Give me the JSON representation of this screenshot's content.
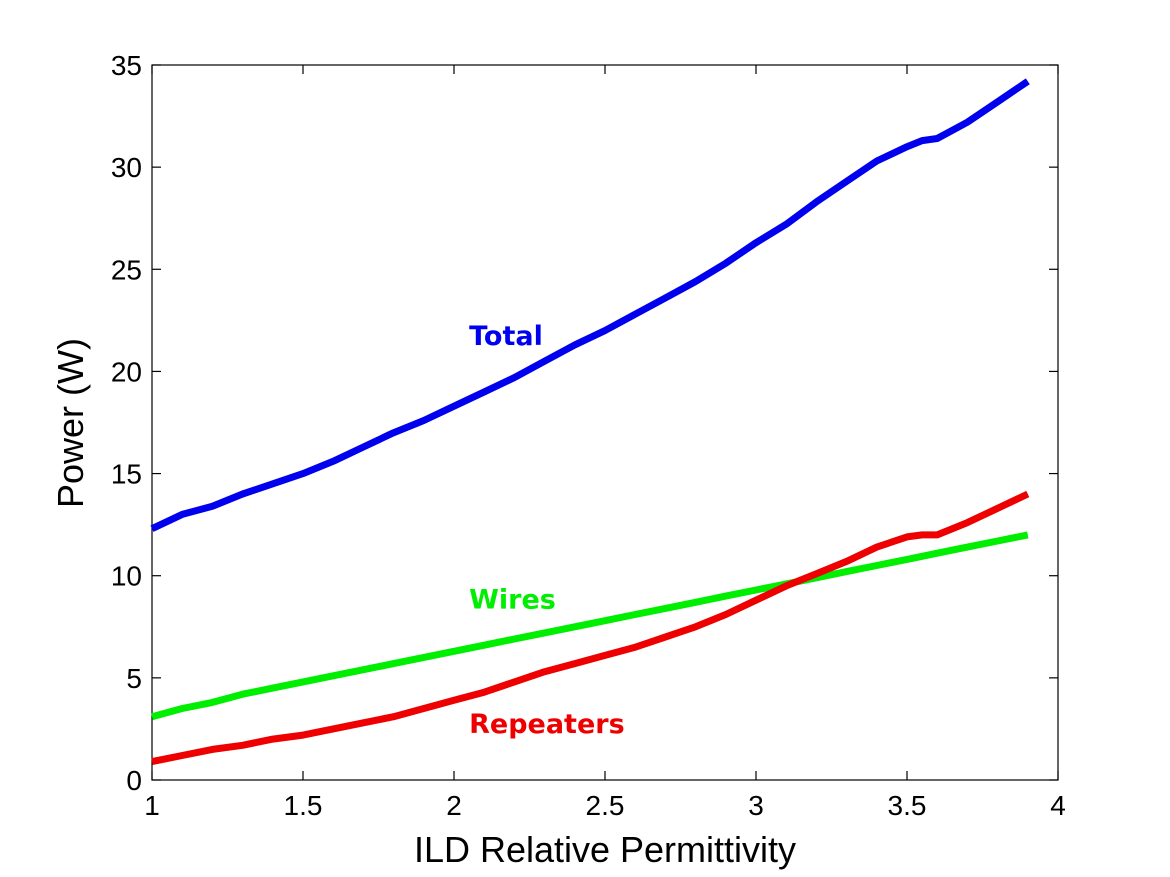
{
  "chart_data": {
    "type": "line",
    "title": "",
    "xlabel": "ILD Relative Permittivity",
    "ylabel": "Power (W)",
    "xlim": [
      1,
      4
    ],
    "ylim": [
      0,
      35
    ],
    "xticks": [
      1,
      1.5,
      2,
      2.5,
      3,
      3.5,
      4
    ],
    "xtick_labels": [
      "1",
      "1.5",
      "2",
      "2.5",
      "3",
      "3.5",
      "4"
    ],
    "yticks": [
      0,
      5,
      10,
      15,
      20,
      25,
      30,
      35
    ],
    "ytick_labels": [
      "0",
      "5",
      "10",
      "15",
      "20",
      "25",
      "30",
      "35"
    ],
    "grid": false,
    "legend": "inline labels",
    "series": [
      {
        "name": "Total",
        "color": "#0000ee",
        "label_at": [
          2.05,
          21.3
        ],
        "x": [
          1.0,
          1.1,
          1.2,
          1.3,
          1.4,
          1.5,
          1.6,
          1.7,
          1.8,
          1.9,
          2.0,
          2.1,
          2.2,
          2.3,
          2.4,
          2.5,
          2.6,
          2.7,
          2.8,
          2.9,
          3.0,
          3.1,
          3.2,
          3.3,
          3.4,
          3.5,
          3.55,
          3.6,
          3.7,
          3.8,
          3.9
        ],
        "values": [
          12.3,
          13.0,
          13.4,
          14.0,
          14.5,
          15.0,
          15.6,
          16.3,
          17.0,
          17.6,
          18.3,
          19.0,
          19.7,
          20.5,
          21.3,
          22.0,
          22.8,
          23.6,
          24.4,
          25.3,
          26.3,
          27.2,
          28.3,
          29.3,
          30.3,
          31.0,
          31.3,
          31.4,
          32.2,
          33.2,
          34.2
        ]
      },
      {
        "name": "Wires",
        "color": "#00ee00",
        "label_at": [
          2.05,
          8.4
        ],
        "x": [
          1.0,
          1.1,
          1.2,
          1.3,
          1.4,
          1.5,
          1.6,
          1.7,
          1.8,
          1.9,
          2.0,
          2.1,
          2.2,
          2.3,
          2.4,
          2.5,
          2.6,
          2.7,
          2.8,
          2.9,
          3.0,
          3.1,
          3.2,
          3.3,
          3.4,
          3.5,
          3.6,
          3.7,
          3.8,
          3.9
        ],
        "values": [
          3.1,
          3.5,
          3.8,
          4.2,
          4.5,
          4.8,
          5.1,
          5.4,
          5.7,
          6.0,
          6.3,
          6.6,
          6.9,
          7.2,
          7.5,
          7.8,
          8.1,
          8.4,
          8.7,
          9.0,
          9.3,
          9.6,
          9.9,
          10.2,
          10.5,
          10.8,
          11.1,
          11.4,
          11.7,
          12.0
        ]
      },
      {
        "name": "Repeaters",
        "color": "#ee0000",
        "label_at": [
          2.05,
          2.3
        ],
        "x": [
          1.0,
          1.1,
          1.2,
          1.3,
          1.4,
          1.5,
          1.6,
          1.7,
          1.8,
          1.9,
          2.0,
          2.1,
          2.2,
          2.3,
          2.4,
          2.5,
          2.6,
          2.7,
          2.8,
          2.9,
          3.0,
          3.1,
          3.2,
          3.3,
          3.4,
          3.5,
          3.55,
          3.6,
          3.7,
          3.8,
          3.9
        ],
        "values": [
          0.9,
          1.2,
          1.5,
          1.7,
          2.0,
          2.2,
          2.5,
          2.8,
          3.1,
          3.5,
          3.9,
          4.3,
          4.8,
          5.3,
          5.7,
          6.1,
          6.5,
          7.0,
          7.5,
          8.1,
          8.8,
          9.5,
          10.1,
          10.7,
          11.4,
          11.9,
          12.0,
          12.0,
          12.6,
          13.3,
          14.0
        ]
      }
    ]
  }
}
